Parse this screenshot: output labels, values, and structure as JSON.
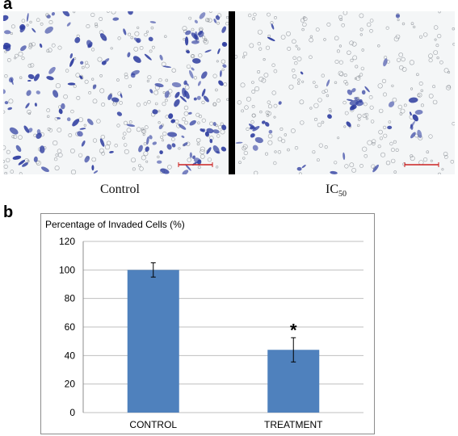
{
  "panels": {
    "a_label": "a",
    "b_label": "b"
  },
  "images": {
    "left_caption": "Control",
    "right_caption_main": "IC",
    "right_caption_sub": "50"
  },
  "colors": {
    "bar": "#4f81bd",
    "grid": "#bfbfbf",
    "stain": "#2f3ea0",
    "scale_bar": "#cc2222"
  },
  "chart_data": {
    "type": "bar",
    "title": "Percentage of Invaded Cells (%)",
    "categories": [
      "CONTROL",
      "TREATMENT"
    ],
    "values": [
      100,
      44
    ],
    "errors": [
      5,
      8.5
    ],
    "annotations": [
      "",
      "*"
    ],
    "ylim": [
      0,
      120
    ],
    "yticks": [
      0,
      20,
      40,
      60,
      80,
      100,
      120
    ],
    "xlabel": "",
    "ylabel": "",
    "grid": true
  }
}
